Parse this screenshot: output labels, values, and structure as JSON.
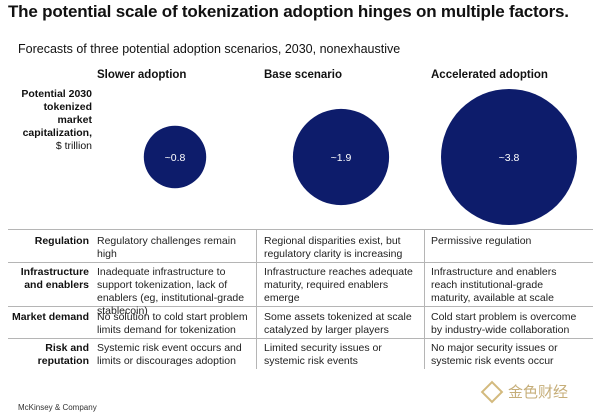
{
  "title": "The potential scale of tokenization adoption hinges on multiple factors.",
  "subtitle": "Forecasts of three potential adoption scenarios, 2030, nonexhaustive",
  "metric_label": {
    "line1": "Potential 2030",
    "line2": "tokenized",
    "line3": "market",
    "line4": "capitalization,",
    "unit": "$ trillion"
  },
  "scenarios": [
    {
      "name": "Slower adoption",
      "rows": [
        "Regulatory challenges remain high",
        "Inadequate infrastructure to support tokenization, lack of enablers (eg, institutional-grade stablecoin)",
        "No solution to cold start problem limits demand for tokenization",
        "Systemic risk event occurs and limits or discourages adoption"
      ]
    },
    {
      "name": "Base scenario",
      "rows": [
        "Regional disparities exist, but regulatory clarity is increasing",
        "Infrastructure reaches adequate maturity, required enablers emerge",
        "Some assets tokenized at scale catalyzed by larger players",
        "Limited security issues or systemic risk events"
      ]
    },
    {
      "name": "Accelerated adoption",
      "rows": [
        "Permissive regulation",
        "Infrastructure and enablers reach institutional-grade maturity, available at scale",
        "Cold start problem is overcome by industry-wide collaboration",
        "No major security issues or systemic risk events occur"
      ]
    }
  ],
  "factors": [
    "Regulation",
    "Infrastructure and enablers",
    "Market demand",
    "Risk and reputation"
  ],
  "chart_data": {
    "type": "bubble",
    "categories": [
      "Slower adoption",
      "Base scenario",
      "Accelerated adoption"
    ],
    "values": [
      0.8,
      1.9,
      3.8
    ],
    "value_labels": [
      "~0.8",
      "~1.9",
      "~3.8"
    ],
    "ylabel": "Potential 2030 tokenized market capitalization, $ trillion",
    "color": "#0d1c6b"
  },
  "footer": "McKinsey & Company",
  "watermark": "金色财经"
}
